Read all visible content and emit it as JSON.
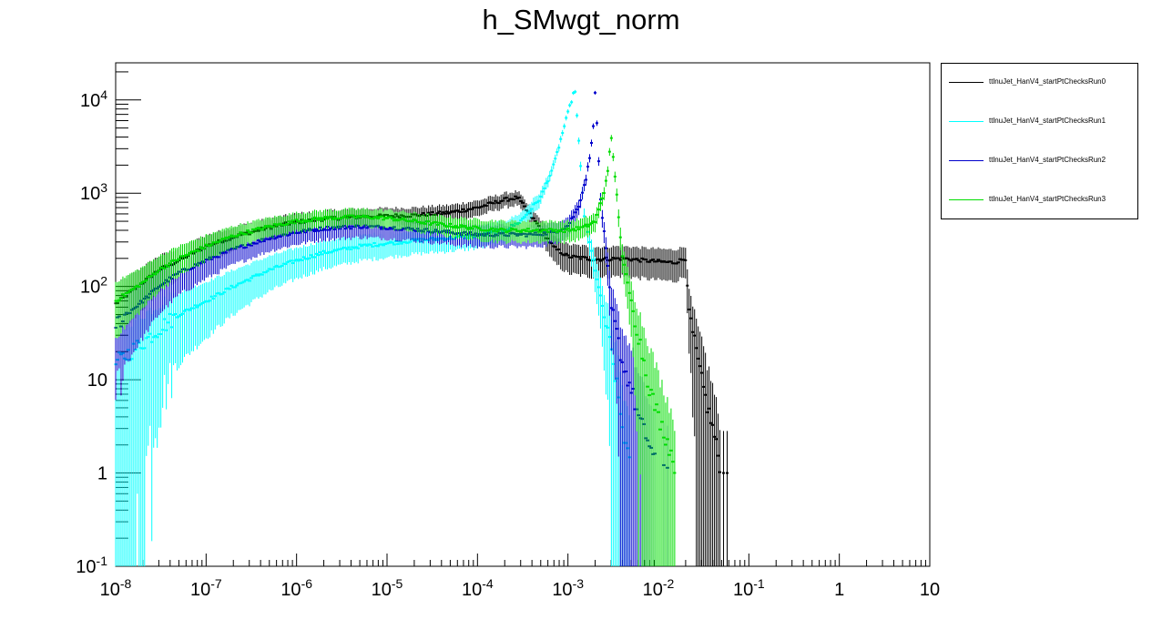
{
  "title": "h_SMwgt_norm",
  "chart_data": {
    "type": "scatter",
    "title": "h_SMwgt_norm",
    "xlabel": "",
    "ylabel": "",
    "x_scale": "log",
    "y_scale": "log",
    "xlim": [
      1e-08,
      10
    ],
    "ylim": [
      0.1,
      25000
    ],
    "x_tick_labels": [
      "10^-8",
      "10^-7",
      "10^-6",
      "10^-5",
      "10^-4",
      "10^-3",
      "10^-2",
      "10^-1",
      "1",
      "10"
    ],
    "y_tick_labels": [
      "10^-1",
      "1",
      "10",
      "10^2",
      "10^3",
      "10^4"
    ],
    "legend_position": "right",
    "series": [
      {
        "name": "ttlnuJet_HanV4_startPtChecksRun0",
        "color": "#000000",
        "points": [
          [
            1e-08,
            65
          ],
          [
            2e-08,
            110
          ],
          [
            3e-08,
            150
          ],
          [
            5e-08,
            190
          ],
          [
            1e-07,
            270
          ],
          [
            2e-07,
            340
          ],
          [
            5e-07,
            430
          ],
          [
            1e-06,
            490
          ],
          [
            2e-06,
            530
          ],
          [
            5e-06,
            560
          ],
          [
            1e-05,
            570
          ],
          [
            2e-05,
            580
          ],
          [
            5e-05,
            620
          ],
          [
            0.0001,
            700
          ],
          [
            0.0002,
            850
          ],
          [
            0.00028,
            900
          ],
          [
            0.00035,
            650
          ],
          [
            0.0005,
            420
          ],
          [
            0.0007,
            260
          ],
          [
            0.001,
            210
          ],
          [
            0.002,
            195
          ],
          [
            0.004,
            200
          ],
          [
            0.007,
            190
          ],
          [
            0.01,
            185
          ],
          [
            0.015,
            180
          ],
          [
            0.02,
            200
          ],
          [
            0.022,
            50
          ],
          [
            0.025,
            25
          ],
          [
            0.03,
            10
          ],
          [
            0.035,
            5
          ],
          [
            0.04,
            3
          ],
          [
            0.05,
            1
          ],
          [
            0.06,
            1
          ]
        ]
      },
      {
        "name": "ttlnuJet_HanV4_startPtChecksRun1",
        "color": "#00ffff",
        "points": [
          [
            1e-08,
            15
          ],
          [
            2e-08,
            25
          ],
          [
            3e-08,
            35
          ],
          [
            5e-08,
            50
          ],
          [
            1e-07,
            70
          ],
          [
            2e-07,
            100
          ],
          [
            5e-07,
            150
          ],
          [
            1e-06,
            190
          ],
          [
            2e-06,
            230
          ],
          [
            5e-06,
            270
          ],
          [
            1e-05,
            290
          ],
          [
            2e-05,
            310
          ],
          [
            5e-05,
            330
          ],
          [
            0.0001,
            350
          ],
          [
            0.0002,
            400
          ],
          [
            0.0003,
            500
          ],
          [
            0.0005,
            900
          ],
          [
            0.0007,
            2000
          ],
          [
            0.0009,
            5000
          ],
          [
            0.0011,
            10000
          ],
          [
            0.0012,
            13000
          ],
          [
            0.0015,
            600
          ],
          [
            0.002,
            150
          ],
          [
            0.0025,
            50
          ],
          [
            0.003,
            20
          ],
          [
            0.0035,
            8
          ],
          [
            0.004,
            3
          ],
          [
            0.005,
            1
          ]
        ]
      },
      {
        "name": "ttlnuJet_HanV4_startPtChecksRun2",
        "color": "#0000cc",
        "points": [
          [
            1e-08,
            40
          ],
          [
            2e-08,
            70
          ],
          [
            3e-08,
            100
          ],
          [
            5e-08,
            140
          ],
          [
            1e-07,
            190
          ],
          [
            2e-07,
            250
          ],
          [
            5e-07,
            330
          ],
          [
            1e-06,
            380
          ],
          [
            2e-06,
            420
          ],
          [
            5e-06,
            440
          ],
          [
            1e-05,
            430
          ],
          [
            2e-05,
            410
          ],
          [
            5e-05,
            380
          ],
          [
            0.0001,
            360
          ],
          [
            0.0002,
            360
          ],
          [
            0.0004,
            360
          ],
          [
            0.0007,
            380
          ],
          [
            0.001,
            450
          ],
          [
            0.0013,
            700
          ],
          [
            0.0016,
            1500
          ],
          [
            0.0018,
            3000
          ],
          [
            0.0019,
            5200
          ],
          [
            0.002,
            13000
          ],
          [
            0.0023,
            800
          ],
          [
            0.0027,
            200
          ],
          [
            0.003,
            60
          ],
          [
            0.0035,
            30
          ],
          [
            0.004,
            15
          ],
          [
            0.005,
            8
          ],
          [
            0.006,
            4
          ],
          [
            0.008,
            2
          ],
          [
            0.01,
            1
          ],
          [
            0.015,
            1
          ]
        ]
      },
      {
        "name": "ttlnuJet_HanV4_startPtChecksRun3",
        "color": "#00dd00",
        "points": [
          [
            1e-08,
            70
          ],
          [
            2e-08,
            110
          ],
          [
            3e-08,
            150
          ],
          [
            5e-08,
            200
          ],
          [
            1e-07,
            270
          ],
          [
            2e-07,
            350
          ],
          [
            5e-07,
            440
          ],
          [
            1e-06,
            500
          ],
          [
            2e-06,
            540
          ],
          [
            5e-06,
            560
          ],
          [
            1e-05,
            540
          ],
          [
            2e-05,
            500
          ],
          [
            5e-05,
            450
          ],
          [
            0.0001,
            420
          ],
          [
            0.0002,
            400
          ],
          [
            0.0005,
            400
          ],
          [
            0.001,
            400
          ],
          [
            0.0015,
            430
          ],
          [
            0.002,
            500
          ],
          [
            0.0025,
            1000
          ],
          [
            0.0028,
            2000
          ],
          [
            0.003,
            4000
          ],
          [
            0.0033,
            1600
          ],
          [
            0.004,
            200
          ],
          [
            0.005,
            70
          ],
          [
            0.006,
            30
          ],
          [
            0.007,
            15
          ],
          [
            0.008,
            8
          ],
          [
            0.01,
            4
          ],
          [
            0.013,
            2
          ],
          [
            0.016,
            1
          ]
        ]
      }
    ]
  }
}
